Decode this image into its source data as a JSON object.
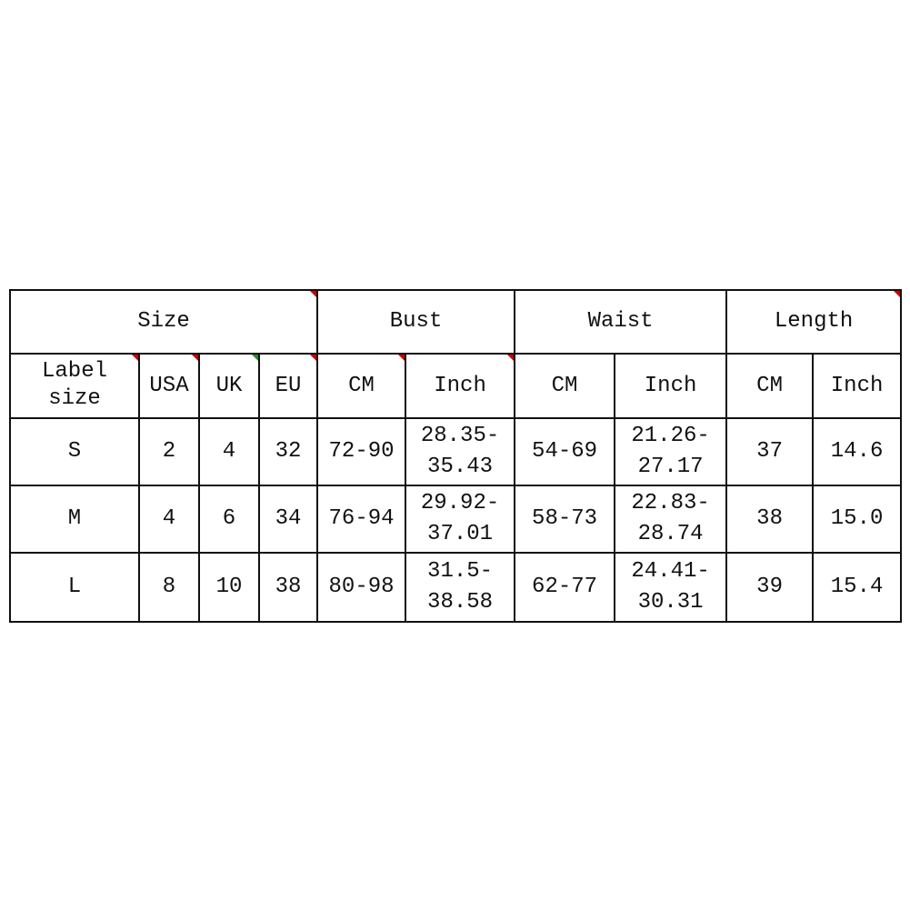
{
  "groups": {
    "size": "Size",
    "bust": "Bust",
    "waist": "Waist",
    "length": "Length"
  },
  "subheaders": [
    "Label size",
    "USA",
    "UK",
    "EU",
    "CM",
    "Inch",
    "CM",
    "Inch",
    "CM",
    "Inch"
  ],
  "rows": [
    {
      "label": "S",
      "usa": "2",
      "uk": "4",
      "eu": "32",
      "bust_cm": "72-90",
      "bust_in_a": "28.35-",
      "bust_in_b": "35.43",
      "waist_cm": "54-69",
      "waist_in_a": "21.26-",
      "waist_in_b": "27.17",
      "len_cm": "37",
      "len_in": "14.6"
    },
    {
      "label": "M",
      "usa": "4",
      "uk": "6",
      "eu": "34",
      "bust_cm": "76-94",
      "bust_in_a": "29.92-",
      "bust_in_b": "37.01",
      "waist_cm": "58-73",
      "waist_in_a": "22.83-",
      "waist_in_b": "28.74",
      "len_cm": "38",
      "len_in": "15.0"
    },
    {
      "label": "L",
      "usa": "8",
      "uk": "10",
      "eu": "38",
      "bust_cm": "80-98",
      "bust_in_a": "31.5-",
      "bust_in_b": "38.58",
      "waist_cm": "62-77",
      "waist_in_a": "24.41-",
      "waist_in_b": "30.31",
      "len_cm": "39",
      "len_in": "15.4"
    }
  ],
  "colors": {
    "marker": "#cc0000",
    "marker_alt": "#2a8a2a",
    "border": "#111111"
  }
}
